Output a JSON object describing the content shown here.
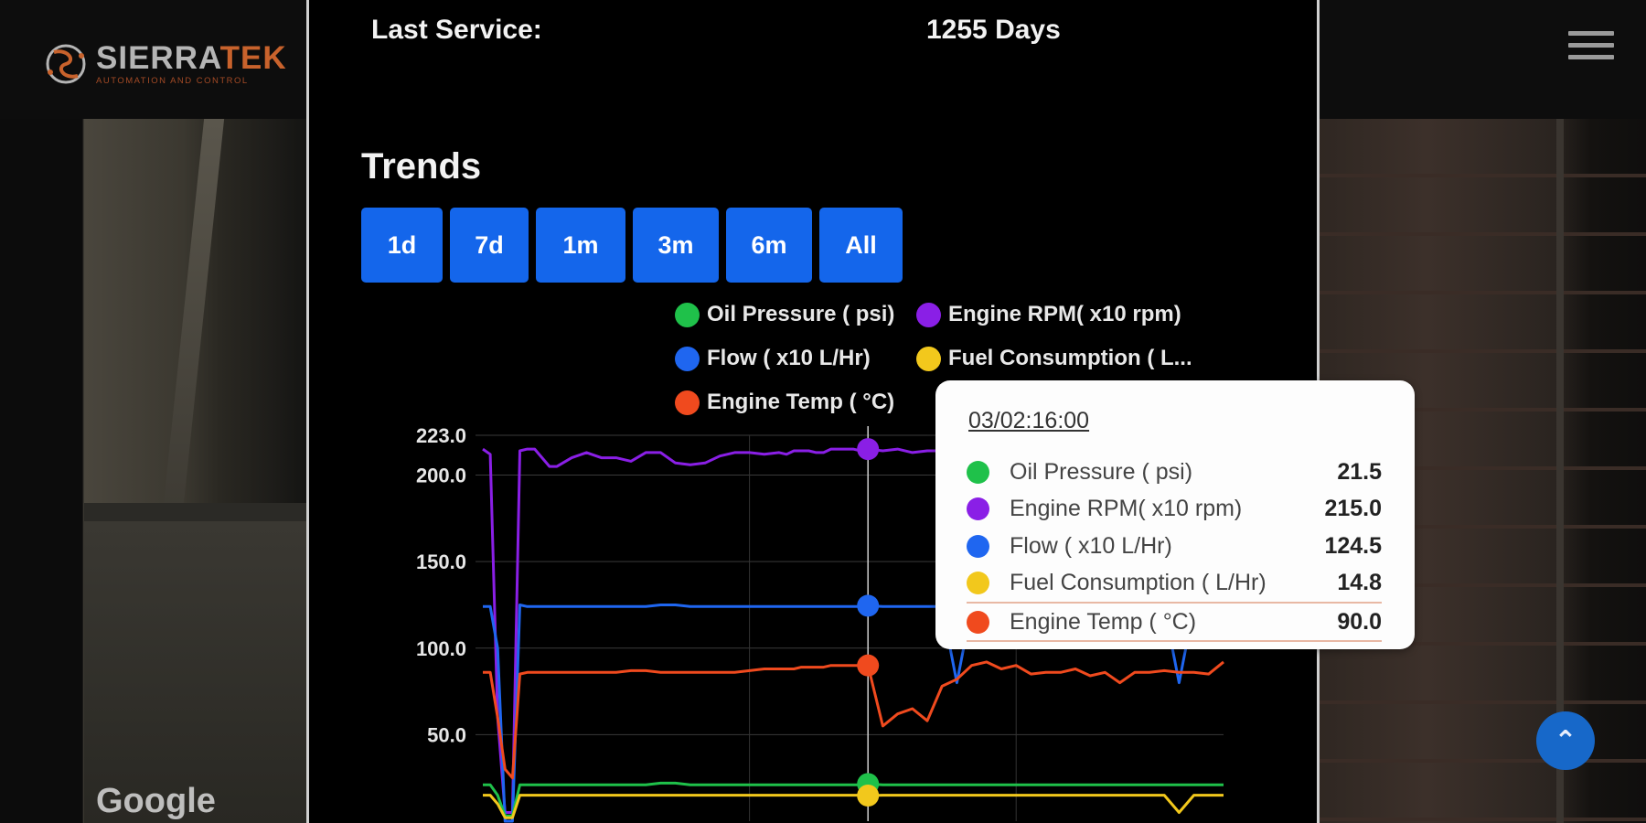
{
  "brand": {
    "name_primary": "SIERRA",
    "name_secondary": "TEK",
    "tagline": "AUTOMATION AND CONTROL"
  },
  "map_attribution": "Google",
  "service": {
    "label": "Last Service:",
    "value": "1255 Days"
  },
  "trends": {
    "title": "Trends",
    "ranges": [
      "1d",
      "7d",
      "1m",
      "3m",
      "6m",
      "All"
    ]
  },
  "legend": [
    {
      "label": "Oil Pressure ( psi)",
      "color": "#1fc14a"
    },
    {
      "label": "Engine RPM( x10 rpm)",
      "color": "#8a1fe6"
    },
    {
      "label": "Flow ( x10 L/Hr)",
      "color": "#1f66f0"
    },
    {
      "label": "Fuel Consumption ( L...",
      "color": "#f2c81c"
    },
    {
      "label": "Engine Temp ( °C)",
      "color": "#f04a1e"
    }
  ],
  "tooltip": {
    "time": "03/02:16:00",
    "rows": [
      {
        "name": "Oil Pressure ( psi)",
        "value": "21.5",
        "color": "#1fc14a"
      },
      {
        "name": "Engine RPM( x10 rpm)",
        "value": "215.0",
        "color": "#8a1fe6"
      },
      {
        "name": "Flow ( x10 L/Hr)",
        "value": "124.5",
        "color": "#1f66f0"
      },
      {
        "name": "Fuel Consumption ( L/Hr)",
        "value": "14.8",
        "color": "#f2c81c"
      },
      {
        "name": "Engine Temp ( °C)",
        "value": "90.0",
        "color": "#f04a1e"
      }
    ]
  },
  "chart_data": {
    "type": "line",
    "y_ticks": [
      "223.0",
      "200.0",
      "150.0",
      "100.0",
      "50.0"
    ],
    "y_tick_values": [
      223,
      200,
      150,
      100,
      50
    ],
    "ylim": [
      0,
      223
    ],
    "x": [
      0,
      1,
      2,
      3,
      4,
      5,
      6,
      7,
      8,
      9,
      10,
      12,
      14,
      16,
      18,
      20,
      22,
      24,
      26,
      28,
      30,
      32,
      34,
      36,
      38,
      40,
      41,
      42,
      43,
      44,
      45,
      46,
      47,
      48,
      49,
      50,
      51,
      52,
      54,
      56,
      58,
      60,
      62,
      64,
      66,
      68,
      70,
      72,
      74,
      76,
      78,
      80,
      82,
      84,
      86,
      88,
      90,
      92,
      94,
      96,
      98,
      100
    ],
    "highlight_index": 37,
    "series": [
      {
        "name": "Engine RPM( x10 rpm)",
        "color": "#8a1fe6",
        "values": [
          215,
          212,
          60,
          5,
          5,
          214,
          215,
          215,
          210,
          205,
          205,
          210,
          213,
          210,
          210,
          208,
          213,
          213,
          207,
          206,
          207,
          211,
          213,
          213,
          212,
          213,
          212,
          214,
          214,
          214,
          213,
          213,
          215,
          215,
          215,
          215,
          214,
          215,
          214,
          215,
          213,
          214,
          214,
          215,
          214,
          214,
          213,
          213,
          214,
          214,
          214,
          215,
          214,
          215,
          214,
          214,
          213,
          214,
          214,
          215,
          214,
          214
        ]
      },
      {
        "name": "Flow ( x10 L/Hr)",
        "color": "#1f66f0",
        "values": [
          124,
          124,
          100,
          0,
          0,
          125,
          124,
          124,
          124,
          124,
          124,
          124,
          124,
          124,
          124,
          124,
          124,
          125,
          125,
          124,
          124,
          124,
          124,
          124,
          124,
          124,
          124,
          124,
          124,
          124,
          124,
          124,
          124,
          124,
          124,
          124,
          124,
          124.5,
          124,
          124,
          124,
          124,
          124,
          80,
          124,
          124,
          124,
          124,
          124,
          124,
          124,
          124,
          124,
          124,
          124,
          124,
          124,
          124,
          80,
          124,
          124,
          124
        ]
      },
      {
        "name": "Engine Temp ( °C)",
        "color": "#f04a1e",
        "values": [
          86,
          86,
          60,
          30,
          25,
          85,
          86,
          86,
          86,
          86,
          86,
          86,
          86,
          86,
          86,
          87,
          87,
          86,
          86,
          86,
          86,
          86,
          86,
          87,
          88,
          88,
          88,
          88,
          89,
          89,
          89,
          89,
          90,
          90,
          90,
          90,
          90,
          90,
          55,
          62,
          65,
          58,
          78,
          82,
          90,
          92,
          88,
          90,
          85,
          86,
          86,
          88,
          84,
          86,
          80,
          86,
          86,
          87,
          86,
          86,
          85,
          92
        ]
      },
      {
        "name": "Oil Pressure ( psi)",
        "color": "#1fc14a",
        "values": [
          21,
          21,
          15,
          3,
          3,
          21,
          21,
          21,
          21,
          21,
          21,
          21,
          21,
          21,
          21,
          21,
          21,
          22,
          22,
          21,
          21,
          21,
          21,
          21,
          21,
          21,
          21,
          21,
          21,
          21,
          21,
          21,
          21,
          21,
          21,
          21,
          21,
          21.5,
          21,
          21,
          21,
          21,
          21,
          21,
          21,
          21,
          21,
          21,
          21,
          21,
          21,
          21,
          21,
          21,
          21,
          21,
          21,
          21,
          21,
          21,
          21,
          21
        ]
      },
      {
        "name": "Fuel Consumption ( L/Hr)",
        "color": "#f2c81c",
        "values": [
          15,
          15,
          10,
          2,
          2,
          15,
          15,
          15,
          15,
          15,
          15,
          15,
          15,
          15,
          15,
          15,
          15,
          15,
          15,
          15,
          15,
          15,
          15,
          15,
          15,
          15,
          15,
          15,
          15,
          15,
          15,
          15,
          15,
          15,
          15,
          15,
          15,
          14.8,
          15,
          15,
          15,
          15,
          15,
          15,
          15,
          15,
          15,
          15,
          15,
          15,
          15,
          15,
          15,
          15,
          15,
          15,
          15,
          15,
          5,
          15,
          15,
          15
        ]
      }
    ]
  }
}
